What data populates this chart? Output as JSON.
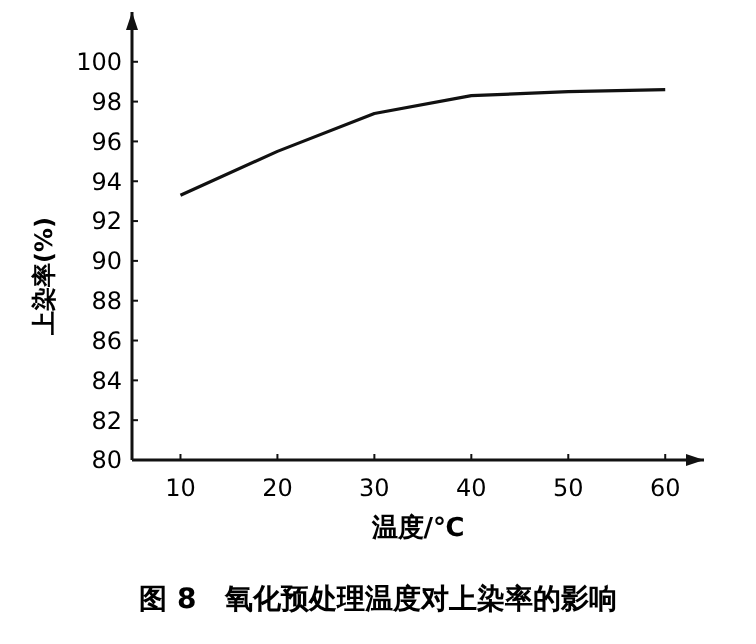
{
  "chart_data": {
    "type": "line",
    "title": "图 8　氧化预处理温度对上染率的影响",
    "xlabel": "温度/℃",
    "ylabel": "上染率(%)",
    "x": [
      10,
      20,
      30,
      40,
      50,
      60
    ],
    "series": [
      {
        "color": "#111111",
        "values": [
          93.3,
          95.5,
          97.4,
          98.3,
          98.5,
          98.6
        ]
      }
    ],
    "xlim": [
      5,
      64
    ],
    "xticks": [
      10,
      20,
      30,
      40,
      50,
      60
    ],
    "ylim": [
      80,
      102.5
    ],
    "yticks": [
      80,
      82,
      84,
      86,
      88,
      90,
      92,
      94,
      96,
      98,
      100
    ],
    "grid": false,
    "marker": "none",
    "line_style": "solid"
  }
}
